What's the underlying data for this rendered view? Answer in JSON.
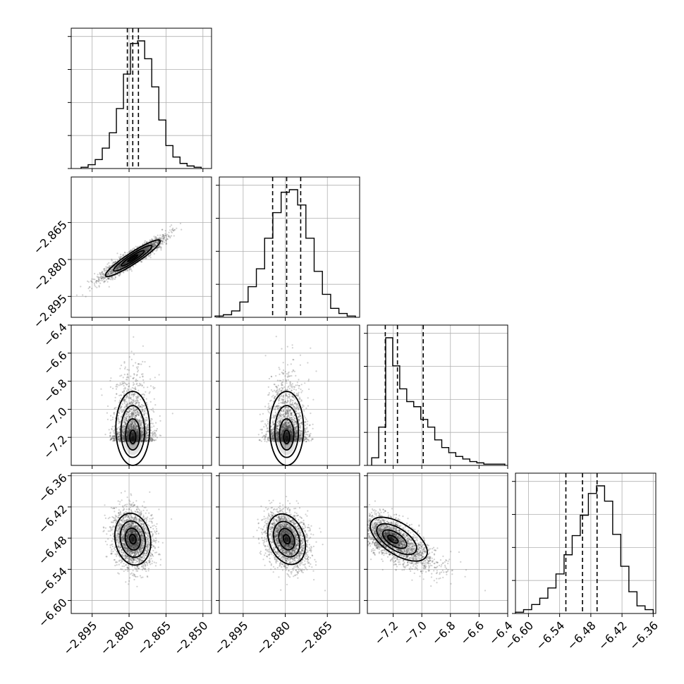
{
  "chart_data": {
    "type": "scatter",
    "title": "",
    "description_free": true,
    "parameters": [
      {
        "index": 0,
        "center": -2.8785,
        "quantiles": [
          -2.8807,
          -2.8785,
          -2.8762
        ],
        "hist_range": [
          -2.8995,
          -2.8507
        ]
      },
      {
        "index": 1,
        "center": -2.8795,
        "quantiles": [
          -2.8845,
          -2.8795,
          -2.8745
        ],
        "hist_range": [
          -2.905,
          -2.855
        ]
      },
      {
        "index": 2,
        "center": -7.21,
        "quantiles": [
          -7.255,
          -7.17,
          -6.99
        ],
        "hist_range": [
          -7.35,
          -6.42
        ]
      },
      {
        "index": 3,
        "center": -6.482,
        "quantiles": [
          -6.528,
          -6.496,
          -6.468
        ],
        "hist_range": [
          -6.625,
          -6.36
        ]
      }
    ],
    "histograms": [
      {
        "param": 0,
        "counts": [
          1,
          3,
          7,
          16,
          28,
          47,
          74,
          98,
          100,
          86,
          64,
          38,
          18,
          9,
          4,
          2,
          1
        ]
      },
      {
        "param": 1,
        "counts": [
          1,
          2,
          5,
          12,
          24,
          38,
          62,
          82,
          98,
          100,
          88,
          62,
          36,
          18,
          7,
          3,
          1
        ]
      },
      {
        "param": 2,
        "counts": [
          6,
          30,
          100,
          78,
          60,
          50,
          46,
          36,
          30,
          20,
          14,
          10,
          7,
          5,
          3,
          2,
          1,
          1,
          1
        ]
      },
      {
        "param": 3,
        "counts": [
          1,
          3,
          7,
          12,
          20,
          31,
          46,
          61,
          77,
          94,
          100,
          88,
          62,
          37,
          17,
          6,
          3
        ]
      }
    ],
    "axes": {
      "x": [
        {
          "column": 0,
          "ticks": [
            -2.895,
            -2.88,
            -2.865,
            -2.85
          ],
          "tick_labels": [
            "−2.895",
            "−2.880",
            "−2.865",
            "−2.850"
          ],
          "range": [
            -2.9035,
            -2.8465
          ]
        },
        {
          "column": 1,
          "ticks": [
            -2.895,
            -2.88,
            -2.865
          ],
          "tick_labels": [
            "−2.895",
            "−2.880",
            "−2.865"
          ],
          "range": [
            -2.9035,
            -2.8535
          ]
        },
        {
          "column": 2,
          "ticks": [
            -7.2,
            -7.0,
            -6.8,
            -6.6,
            -6.4
          ],
          "tick_labels": [
            "−7.2",
            "−7.0",
            "−6.8",
            "−6.6",
            "−6.4"
          ],
          "range": [
            -7.38,
            -6.4
          ]
        },
        {
          "column": 3,
          "ticks": [
            -6.6,
            -6.54,
            -6.48,
            -6.42,
            -6.36
          ],
          "tick_labels": [
            "−6.60",
            "−6.54",
            "−6.48",
            "−6.42",
            "−6.36"
          ],
          "range": [
            -6.625,
            -6.355
          ]
        }
      ],
      "y": [
        {
          "row": 1,
          "ticks": [
            -2.865,
            -2.88,
            -2.895
          ],
          "tick_labels": [
            "−2.865",
            "−2.880",
            "−2.895"
          ],
          "range": [
            -2.9035,
            -2.8465
          ]
        },
        {
          "row": 2,
          "ticks": [
            -6.4,
            -6.6,
            -6.8,
            -7.0,
            -7.2
          ],
          "tick_labels": [
            "−6.4",
            "−6.6",
            "−6.8",
            "−7.0",
            "−7.2"
          ],
          "range": [
            -7.4,
            -6.4
          ]
        },
        {
          "row": 3,
          "ticks": [
            -6.36,
            -6.42,
            -6.48,
            -6.54,
            -6.6
          ],
          "tick_labels": [
            "−6.36",
            "−6.42",
            "−6.48",
            "−6.54",
            "−6.60"
          ],
          "range": [
            -6.625,
            -6.355
          ]
        }
      ]
    },
    "grid": true,
    "colors": {
      "samples": "#555555",
      "lines": "#000000",
      "grid": "#b0b0b0"
    }
  }
}
